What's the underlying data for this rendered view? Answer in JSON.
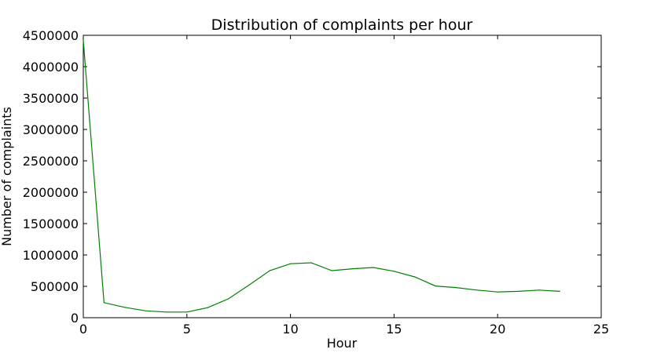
{
  "chart_data": {
    "type": "line",
    "title": "Distribution of complaints per hour",
    "xlabel": "Hour",
    "ylabel": "Number of complaints",
    "xlim": [
      0,
      25
    ],
    "ylim": [
      0,
      4500000
    ],
    "xticks": [
      0,
      5,
      10,
      15,
      20,
      25
    ],
    "yticks": [
      0,
      500000,
      1000000,
      1500000,
      2000000,
      2500000,
      3000000,
      3500000,
      4000000,
      4500000
    ],
    "xtick_labels": [
      "0",
      "5",
      "10",
      "15",
      "20",
      "25"
    ],
    "ytick_labels": [
      "0",
      "500000",
      "1000000",
      "1500000",
      "2000000",
      "2500000",
      "3000000",
      "3500000",
      "4000000",
      "4500000"
    ],
    "grid": false,
    "legend": "none",
    "series": [
      {
        "color": "#008000",
        "x": [
          0,
          1,
          2,
          3,
          4,
          5,
          6,
          7,
          8,
          9,
          10,
          11,
          12,
          13,
          14,
          15,
          16,
          17,
          18,
          19,
          20,
          21,
          22,
          23
        ],
        "y": [
          4420000,
          240000,
          165000,
          110000,
          90000,
          90000,
          160000,
          300000,
          520000,
          750000,
          860000,
          875000,
          750000,
          780000,
          800000,
          740000,
          650000,
          505000,
          480000,
          440000,
          410000,
          420000,
          440000,
          420000
        ]
      }
    ]
  }
}
